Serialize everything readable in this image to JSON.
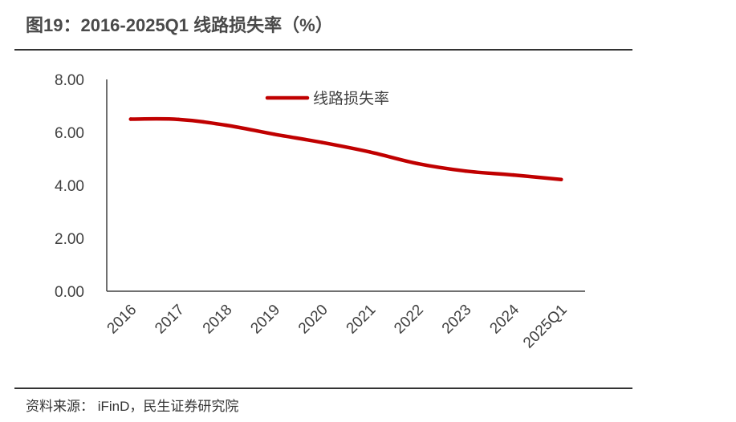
{
  "figure": {
    "title": "图19：2016-2025Q1 线路损失率（%）",
    "source": "资料来源： iFinD，民生证券研究院"
  },
  "chart_data": {
    "type": "line",
    "title": "图19：2016-2025Q1 线路损失率（%）",
    "xlabel": "",
    "ylabel": "",
    "categories": [
      "2016",
      "2017",
      "2018",
      "2019",
      "2020",
      "2021",
      "2022",
      "2023",
      "2024",
      "2025Q1"
    ],
    "y_ticks": [
      "0.00",
      "2.00",
      "4.00",
      "6.00",
      "8.00"
    ],
    "ylim": [
      0,
      8
    ],
    "grid": false,
    "legend_position": "top-center",
    "series": [
      {
        "name": "线路损失率",
        "color": "#C00000",
        "values": [
          6.5,
          6.49,
          6.27,
          5.93,
          5.62,
          5.26,
          4.82,
          4.54,
          4.39,
          4.22
        ]
      }
    ]
  }
}
